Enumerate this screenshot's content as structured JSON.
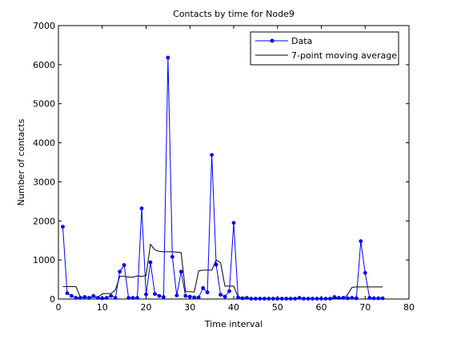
{
  "chart_data": {
    "type": "line",
    "title": "Contacts by time for Node9",
    "xlabel": "Time interval",
    "ylabel": "Number of contacts",
    "xlim": [
      0,
      80
    ],
    "ylim": [
      0,
      7000
    ],
    "xticks": [
      0,
      10,
      20,
      30,
      40,
      50,
      60,
      70,
      80
    ],
    "yticks": [
      0,
      1000,
      2000,
      3000,
      4000,
      5000,
      6000,
      7000
    ],
    "grid": false,
    "legend_position": "top-right",
    "series": [
      {
        "name": "Data",
        "color": "#0000ff",
        "marker": "dot",
        "x": [
          1,
          2,
          3,
          4,
          5,
          6,
          7,
          8,
          9,
          10,
          11,
          12,
          13,
          14,
          15,
          16,
          17,
          18,
          19,
          20,
          21,
          22,
          23,
          24,
          25,
          26,
          27,
          28,
          29,
          30,
          31,
          32,
          33,
          34,
          35,
          36,
          37,
          38,
          39,
          40,
          41,
          42,
          43,
          44,
          45,
          46,
          47,
          48,
          49,
          50,
          51,
          52,
          53,
          54,
          55,
          56,
          57,
          58,
          59,
          60,
          61,
          62,
          63,
          64,
          65,
          66,
          67,
          68,
          69,
          70,
          71,
          72,
          73,
          74
        ],
        "y": [
          1850,
          150,
          80,
          30,
          30,
          50,
          30,
          80,
          30,
          20,
          30,
          80,
          30,
          700,
          870,
          30,
          30,
          30,
          2320,
          120,
          940,
          130,
          80,
          50,
          6180,
          1080,
          90,
          700,
          80,
          60,
          40,
          40,
          280,
          170,
          3690,
          880,
          110,
          60,
          200,
          1950,
          40,
          20,
          30,
          10,
          10,
          10,
          10,
          10,
          10,
          10,
          10,
          10,
          10,
          10,
          30,
          10,
          10,
          10,
          10,
          10,
          10,
          10,
          50,
          30,
          30,
          20,
          30,
          20,
          1480,
          670,
          30,
          20,
          20,
          20
        ]
      },
      {
        "name": "7-point moving average",
        "color": "#000000",
        "marker": "none",
        "x": [
          1,
          2,
          3,
          4,
          5,
          6,
          7,
          8,
          9,
          10,
          11,
          12,
          13,
          14,
          15,
          16,
          17,
          18,
          19,
          20,
          21,
          22,
          23,
          24,
          25,
          26,
          27,
          28,
          29,
          30,
          31,
          32,
          33,
          34,
          35,
          36,
          37,
          38,
          39,
          40,
          41,
          42,
          43,
          44,
          45,
          46,
          47,
          48,
          49,
          50,
          51,
          52,
          53,
          54,
          55,
          56,
          57,
          58,
          59,
          60,
          61,
          62,
          63,
          64,
          65,
          66,
          67,
          68,
          69,
          70,
          71,
          72,
          73,
          74
        ],
        "y": [
          320,
          320,
          320,
          320,
          50,
          45,
          40,
          40,
          40,
          130,
          140,
          140,
          230,
          580,
          580,
          560,
          560,
          590,
          580,
          600,
          1400,
          1260,
          1220,
          1210,
          1210,
          1210,
          1200,
          1190,
          190,
          190,
          180,
          720,
          740,
          740,
          740,
          1000,
          930,
          330,
          330,
          330,
          50,
          30,
          15,
          15,
          15,
          15,
          15,
          15,
          15,
          15,
          15,
          15,
          15,
          15,
          15,
          15,
          15,
          15,
          15,
          15,
          15,
          15,
          15,
          15,
          15,
          110,
          300,
          310,
          310,
          310,
          310,
          310,
          310,
          310
        ]
      }
    ]
  }
}
